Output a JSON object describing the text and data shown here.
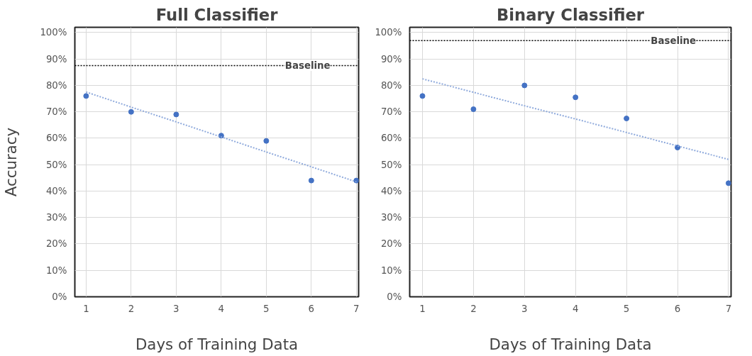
{
  "chart_data": [
    {
      "type": "scatter",
      "title": "Full Classifier",
      "xlabel": "Days of Training Data",
      "ylabel": "Accuracy",
      "x": [
        1,
        2,
        3,
        4,
        5,
        6,
        7
      ],
      "series": [
        {
          "type": "scatter",
          "color": "#4472c4",
          "marker": "circle",
          "values": [
            76,
            70,
            69,
            61,
            59,
            44,
            44
          ]
        },
        {
          "type": "line",
          "color": "#8faadc",
          "line_style": "dotted",
          "values": [
            77.5,
            71.8,
            66.2,
            60.5,
            54.8,
            49.2,
            43.5
          ]
        }
      ],
      "xlim": [
        1,
        7
      ],
      "xticks": [
        1,
        2,
        3,
        4,
        5,
        6,
        7
      ],
      "ylim": [
        0,
        100
      ],
      "yticks": [
        {
          "value": 0,
          "label": "0%"
        },
        {
          "value": 10,
          "label": "10%"
        },
        {
          "value": 20,
          "label": "20%"
        },
        {
          "value": 30,
          "label": "30%"
        },
        {
          "value": 40,
          "label": "40%"
        },
        {
          "value": 50,
          "label": "50%"
        },
        {
          "value": 60,
          "label": "60%"
        },
        {
          "value": 70,
          "label": "70%"
        },
        {
          "value": 80,
          "label": "80%"
        },
        {
          "value": 90,
          "label": "90%"
        },
        {
          "value": 100,
          "label": "100%"
        }
      ],
      "ref_lines": [
        {
          "axis": "y",
          "value": 87.5,
          "label": "Baseline",
          "color": "#000000",
          "line_style": "dotted"
        }
      ],
      "grid": true
    },
    {
      "type": "scatter",
      "title": "Binary Classifier",
      "xlabel": "Days of Training Data",
      "x": [
        1,
        2,
        3,
        4,
        5,
        6,
        7
      ],
      "series": [
        {
          "type": "scatter",
          "color": "#4472c4",
          "marker": "circle",
          "values": [
            76,
            71,
            80,
            75.5,
            67.5,
            56.5,
            43
          ]
        },
        {
          "type": "line",
          "color": "#8faadc",
          "line_style": "dotted",
          "values": [
            82.5,
            77.4,
            72.3,
            67.3,
            62.2,
            57.1,
            52
          ]
        }
      ],
      "xlim": [
        1,
        7
      ],
      "xticks": [
        1,
        2,
        3,
        4,
        5,
        6,
        7
      ],
      "ylim": [
        0,
        100
      ],
      "yticks": [
        {
          "value": 0,
          "label": "0%"
        },
        {
          "value": 10,
          "label": "10%"
        },
        {
          "value": 20,
          "label": "20%"
        },
        {
          "value": 30,
          "label": "30%"
        },
        {
          "value": 40,
          "label": "40%"
        },
        {
          "value": 50,
          "label": "50%"
        },
        {
          "value": 60,
          "label": "60%"
        },
        {
          "value": 70,
          "label": "70%"
        },
        {
          "value": 80,
          "label": "80%"
        },
        {
          "value": 90,
          "label": "90%"
        },
        {
          "value": 100,
          "label": "100%"
        }
      ],
      "ref_lines": [
        {
          "axis": "y",
          "value": 97,
          "label": "Baseline",
          "color": "#000000",
          "line_style": "dotted"
        }
      ],
      "grid": true
    }
  ]
}
